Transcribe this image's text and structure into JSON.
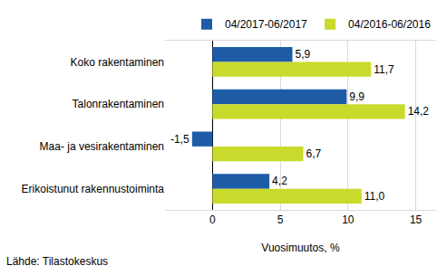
{
  "chart_data": {
    "type": "bar",
    "orientation": "horizontal",
    "categories": [
      "Koko rakentaminen",
      "Talonrakentaminen",
      "Maa- ja vesirakentaminen",
      "Erikoistunut rakennustoiminta"
    ],
    "series": [
      {
        "name": "04/2017-06/2017",
        "color": "#1f5ca8",
        "values": [
          5.9,
          9.9,
          -1.5,
          4.2
        ],
        "value_labels": [
          "5,9",
          "9,9",
          "-1,5",
          "4,2"
        ]
      },
      {
        "name": "04/2016-06/2016",
        "color": "#c8da2b",
        "values": [
          11.7,
          14.2,
          6.7,
          11.0
        ],
        "value_labels": [
          "11,7",
          "14,2",
          "6,7",
          "11,0"
        ]
      }
    ],
    "xlabel": "Vuosimuutos, %",
    "xlim": [
      -3.5,
      16.5
    ],
    "xticks": [
      0,
      5,
      10,
      15
    ],
    "grid": true,
    "legend": "upper right",
    "data_labels": true,
    "annotations": [
      "Lähde: Tilastokeskus"
    ]
  }
}
